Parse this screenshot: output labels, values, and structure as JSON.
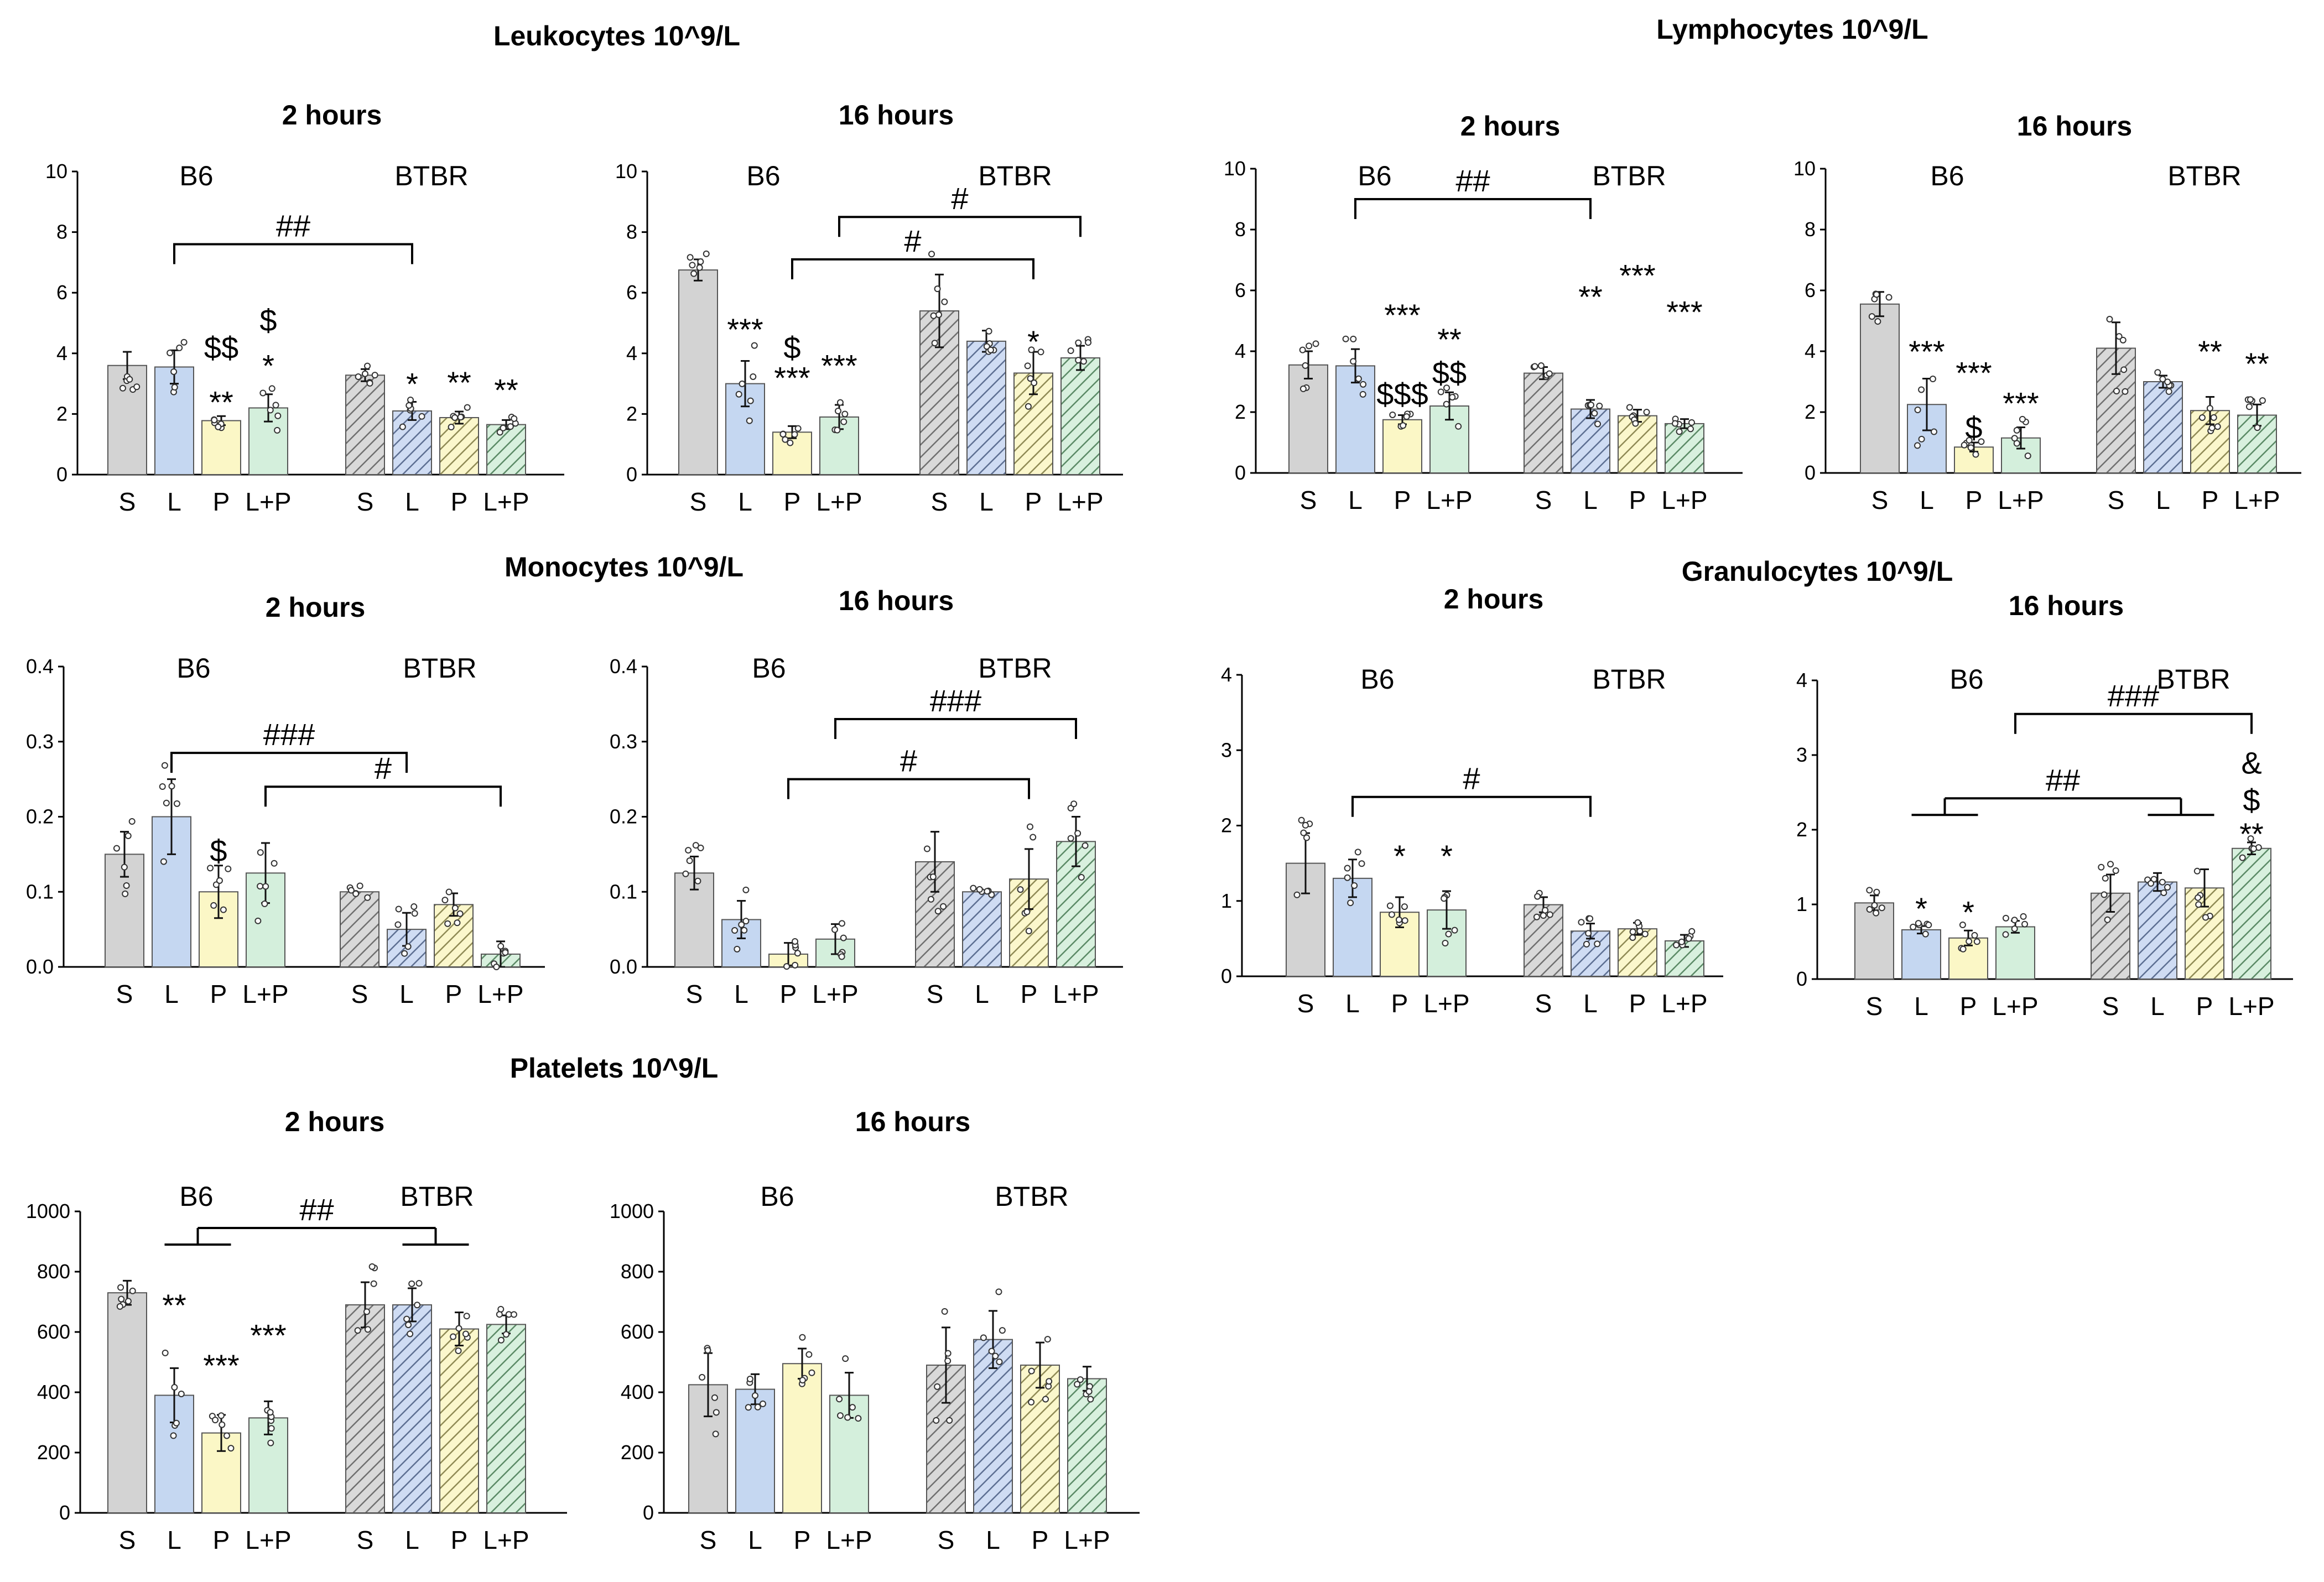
{
  "figure": {
    "series_colors": {
      "S": "#d3d3d3",
      "L": "#c5d7f1",
      "P": "#fbf7c6",
      "L+P": "#d4efdc"
    },
    "hatch_note": "BTBR bars hatched",
    "sections": [
      {
        "title": "Leukocytes 10^9/L"
      },
      {
        "title": "Lymphocytes 10^9/L"
      },
      {
        "title": "Monocytes 10^9/L"
      },
      {
        "title": "Granulocytes 10^9/L"
      },
      {
        "title": "Platelets 10^9/L"
      }
    ]
  },
  "chart_data": [
    {
      "id": "leuk_2h",
      "type": "bar",
      "section": "Leukocytes 10^9/L",
      "title": "2 hours",
      "groups": [
        "B6",
        "BTBR"
      ],
      "categories": [
        "S",
        "L",
        "P",
        "L+P"
      ],
      "ylim": [
        0,
        10
      ],
      "yticks": [
        "0",
        "2",
        "4",
        "6",
        "8",
        "10"
      ],
      "series": [
        {
          "name": "B6",
          "values": [
            3.6,
            3.55,
            1.78,
            2.2
          ],
          "errors": [
            0.45,
            0.55,
            0.15,
            0.45
          ]
        },
        {
          "name": "BTBR",
          "values": [
            3.28,
            2.1,
            1.88,
            1.65
          ],
          "errors": [
            0.2,
            0.3,
            0.2,
            0.15
          ]
        }
      ],
      "annotations": [
        {
          "label": "**",
          "group": 0,
          "index": 2,
          "y": 2.4
        },
        {
          "label": "$$",
          "group": 0,
          "index": 2,
          "y": 4.2
        },
        {
          "label": "*",
          "group": 0,
          "index": 3,
          "y": 3.6
        },
        {
          "label": "$",
          "group": 0,
          "index": 3,
          "y": 5.1
        },
        {
          "label": "*",
          "group": 1,
          "index": 1,
          "y": 3.0
        },
        {
          "label": "**",
          "group": 1,
          "index": 2,
          "y": 3.05
        },
        {
          "label": "**",
          "group": 1,
          "index": 3,
          "y": 2.8
        }
      ],
      "brackets": [
        {
          "label": "##",
          "from": [
            0,
            1
          ],
          "to": [
            1,
            1
          ],
          "y": 7.6,
          "type": "down"
        }
      ]
    },
    {
      "id": "leuk_16h",
      "type": "bar",
      "section": "Leukocytes 10^9/L",
      "title": "16 hours",
      "groups": [
        "B6",
        "BTBR"
      ],
      "categories": [
        "S",
        "L",
        "P",
        "L+P"
      ],
      "ylim": [
        0,
        10
      ],
      "yticks": [
        "0",
        "2",
        "4",
        "6",
        "8",
        "10"
      ],
      "series": [
        {
          "name": "B6",
          "values": [
            6.75,
            3.0,
            1.4,
            1.9
          ],
          "errors": [
            0.35,
            0.75,
            0.2,
            0.4
          ]
        },
        {
          "name": "BTBR",
          "values": [
            5.4,
            4.4,
            3.35,
            3.85
          ],
          "errors": [
            1.2,
            0.35,
            0.7,
            0.4
          ]
        }
      ],
      "annotations": [
        {
          "label": "***",
          "group": 0,
          "index": 1,
          "y": 4.8
        },
        {
          "label": "***",
          "group": 0,
          "index": 2,
          "y": 3.2
        },
        {
          "label": "$",
          "group": 0,
          "index": 2,
          "y": 4.2
        },
        {
          "label": "***",
          "group": 0,
          "index": 3,
          "y": 3.6
        },
        {
          "label": "*",
          "group": 1,
          "index": 2,
          "y": 4.4
        }
      ],
      "brackets": [
        {
          "label": "#",
          "from": [
            0,
            2
          ],
          "to": [
            1,
            2
          ],
          "y": 7.1,
          "type": "down"
        },
        {
          "label": "#",
          "from": [
            0,
            3
          ],
          "to": [
            1,
            3
          ],
          "y": 8.5,
          "type": "down"
        }
      ]
    },
    {
      "id": "lymph_2h",
      "type": "bar",
      "section": "Lymphocytes 10^9/L",
      "title": "2 hours",
      "groups": [
        "B6",
        "BTBR"
      ],
      "categories": [
        "S",
        "L",
        "P",
        "L+P"
      ],
      "ylim": [
        0,
        10
      ],
      "yticks": [
        "0",
        "2",
        "4",
        "6",
        "8",
        "10"
      ],
      "series": [
        {
          "name": "B6",
          "values": [
            3.55,
            3.52,
            1.75,
            2.2
          ],
          "errors": [
            0.45,
            0.55,
            0.15,
            0.45
          ]
        },
        {
          "name": "BTBR",
          "values": [
            3.28,
            2.1,
            1.88,
            1.62
          ],
          "errors": [
            0.2,
            0.3,
            0.2,
            0.15
          ]
        }
      ],
      "annotations": [
        {
          "label": "$$$",
          "group": 0,
          "index": 2,
          "y": 2.6
        },
        {
          "label": "***",
          "group": 0,
          "index": 2,
          "y": 5.2
        },
        {
          "label": "$$",
          "group": 0,
          "index": 3,
          "y": 3.3
        },
        {
          "label": "**",
          "group": 0,
          "index": 3,
          "y": 4.4
        },
        {
          "label": "**",
          "group": 1,
          "index": 1,
          "y": 5.8
        },
        {
          "label": "***",
          "group": 1,
          "index": 2,
          "y": 6.5
        },
        {
          "label": "***",
          "group": 1,
          "index": 3,
          "y": 5.3
        }
      ],
      "brackets": [
        {
          "label": "##",
          "from": [
            0,
            1
          ],
          "to": [
            1,
            1
          ],
          "y": 9.0,
          "type": "down"
        }
      ]
    },
    {
      "id": "lymph_16h",
      "type": "bar",
      "section": "Lymphocytes 10^9/L",
      "title": "16 hours",
      "groups": [
        "B6",
        "BTBR"
      ],
      "categories": [
        "S",
        "L",
        "P",
        "L+P"
      ],
      "ylim": [
        0,
        10
      ],
      "yticks": [
        "0",
        "2",
        "4",
        "6",
        "8",
        "10"
      ],
      "series": [
        {
          "name": "B6",
          "values": [
            5.55,
            2.25,
            0.85,
            1.15
          ],
          "errors": [
            0.4,
            0.85,
            0.15,
            0.35
          ]
        },
        {
          "name": "BTBR",
          "values": [
            4.1,
            3.0,
            2.05,
            1.9
          ],
          "errors": [
            0.85,
            0.2,
            0.45,
            0.35
          ]
        }
      ],
      "annotations": [
        {
          "label": "***",
          "group": 0,
          "index": 1,
          "y": 4.0
        },
        {
          "label": "***",
          "group": 0,
          "index": 2,
          "y": 3.3
        },
        {
          "label": "$",
          "group": 0,
          "index": 2,
          "y": 1.5
        },
        {
          "label": "***",
          "group": 0,
          "index": 3,
          "y": 2.3
        },
        {
          "label": "**",
          "group": 1,
          "index": 2,
          "y": 4.0
        },
        {
          "label": "**",
          "group": 1,
          "index": 3,
          "y": 3.6
        }
      ],
      "brackets": []
    },
    {
      "id": "mono_2h",
      "type": "bar",
      "section": "Monocytes 10^9/L",
      "title": "2 hours",
      "groups": [
        "B6",
        "BTBR"
      ],
      "categories": [
        "S",
        "L",
        "P",
        "L+P"
      ],
      "ylim": [
        0,
        0.4
      ],
      "yticks": [
        "0.0",
        "0.1",
        "0.2",
        "0.3",
        "0.4"
      ],
      "series": [
        {
          "name": "B6",
          "values": [
            0.15,
            0.2,
            0.1,
            0.125
          ],
          "errors": [
            0.03,
            0.05,
            0.035,
            0.04
          ]
        },
        {
          "name": "BTBR",
          "values": [
            0.1,
            0.05,
            0.083,
            0.017
          ],
          "errors": [
            0.0,
            0.022,
            0.015,
            0.017
          ]
        }
      ],
      "annotations": [
        {
          "label": "$",
          "group": 0,
          "index": 2,
          "y": 0.155
        }
      ],
      "brackets": [
        {
          "label": "###",
          "from": [
            0,
            1
          ],
          "to": [
            1,
            1
          ],
          "y": 0.285,
          "type": "down"
        },
        {
          "label": "#",
          "from": [
            0,
            3
          ],
          "to": [
            1,
            3
          ],
          "y": 0.24,
          "type": "down"
        }
      ]
    },
    {
      "id": "mono_16h",
      "type": "bar",
      "section": "Monocytes 10^9/L",
      "title": "16 hours",
      "groups": [
        "B6",
        "BTBR"
      ],
      "categories": [
        "S",
        "L",
        "P",
        "L+P"
      ],
      "ylim": [
        0,
        0.4
      ],
      "yticks": [
        "0.0",
        "0.1",
        "0.2",
        "0.3",
        "0.4"
      ],
      "series": [
        {
          "name": "B6",
          "values": [
            0.125,
            0.063,
            0.017,
            0.037
          ],
          "errors": [
            0.022,
            0.025,
            0.015,
            0.02
          ]
        },
        {
          "name": "BTBR",
          "values": [
            0.14,
            0.1,
            0.117,
            0.167
          ],
          "errors": [
            0.04,
            0.0,
            0.04,
            0.033
          ]
        }
      ],
      "annotations": [],
      "brackets": [
        {
          "label": "###",
          "from": [
            0,
            3
          ],
          "to": [
            1,
            3
          ],
          "y": 0.33,
          "type": "down"
        },
        {
          "label": "#",
          "from": [
            0,
            2
          ],
          "to": [
            1,
            2
          ],
          "y": 0.25,
          "type": "down"
        }
      ]
    },
    {
      "id": "gran_2h",
      "type": "bar",
      "section": "Granulocytes 10^9/L",
      "title": "2 hours",
      "groups": [
        "B6",
        "BTBR"
      ],
      "categories": [
        "S",
        "L",
        "P",
        "L+P"
      ],
      "ylim": [
        0,
        4
      ],
      "yticks": [
        "0",
        "1",
        "2",
        "3",
        "4"
      ],
      "series": [
        {
          "name": "B6",
          "values": [
            1.5,
            1.3,
            0.85,
            0.88
          ],
          "errors": [
            0.4,
            0.25,
            0.2,
            0.25
          ]
        },
        {
          "name": "BTBR",
          "values": [
            0.95,
            0.6,
            0.63,
            0.47
          ],
          "errors": [
            0.1,
            0.1,
            0.08,
            0.08
          ]
        }
      ],
      "annotations": [
        {
          "label": "*",
          "group": 0,
          "index": 2,
          "y": 1.6
        },
        {
          "label": "*",
          "group": 0,
          "index": 3,
          "y": 1.6
        }
      ],
      "brackets": [
        {
          "label": "#",
          "from": [
            0,
            1
          ],
          "to": [
            1,
            1
          ],
          "y": 2.38,
          "type": "down"
        }
      ]
    },
    {
      "id": "gran_16h",
      "type": "bar",
      "section": "Granulocytes 10^9/L",
      "title": "16 hours",
      "groups": [
        "B6",
        "BTBR"
      ],
      "categories": [
        "S",
        "L",
        "P",
        "L+P"
      ],
      "ylim": [
        0,
        4
      ],
      "yticks": [
        "0",
        "1",
        "2",
        "3",
        "4"
      ],
      "series": [
        {
          "name": "B6",
          "values": [
            1.02,
            0.66,
            0.55,
            0.7
          ],
          "errors": [
            0.1,
            0.05,
            0.1,
            0.08
          ]
        },
        {
          "name": "BTBR",
          "values": [
            1.15,
            1.3,
            1.22,
            1.75
          ],
          "errors": [
            0.25,
            0.12,
            0.25,
            0.08
          ]
        }
      ],
      "annotations": [
        {
          "label": "*",
          "group": 0,
          "index": 1,
          "y": 0.95
        },
        {
          "label": "*",
          "group": 0,
          "index": 2,
          "y": 0.9
        },
        {
          "label": "**",
          "group": 1,
          "index": 3,
          "y": 1.95
        },
        {
          "label": "$",
          "group": 1,
          "index": 3,
          "y": 2.4
        },
        {
          "label": "&",
          "group": 1,
          "index": 3,
          "y": 2.9
        }
      ],
      "brackets": [
        {
          "label": "##",
          "from": [
            0,
            1.5
          ],
          "to": [
            1,
            1.5
          ],
          "y": 2.42,
          "type": "t"
        },
        {
          "label": "###",
          "from": [
            0,
            3
          ],
          "to": [
            1,
            3
          ],
          "y": 3.55,
          "type": "down"
        }
      ]
    },
    {
      "id": "plt_2h",
      "type": "bar",
      "section": "Platelets 10^9/L",
      "title": "2 hours",
      "groups": [
        "B6",
        "BTBR"
      ],
      "categories": [
        "S",
        "L",
        "P",
        "L+P"
      ],
      "ylim": [
        0,
        1000
      ],
      "yticks": [
        "0",
        "200",
        "400",
        "600",
        "800",
        "1000"
      ],
      "series": [
        {
          "name": "B6",
          "values": [
            730,
            390,
            265,
            315
          ],
          "errors": [
            40,
            90,
            60,
            55
          ]
        },
        {
          "name": "BTBR",
          "values": [
            690,
            690,
            610,
            625
          ],
          "errors": [
            75,
            55,
            55,
            30
          ]
        }
      ],
      "annotations": [
        {
          "label": "**",
          "group": 0,
          "index": 1,
          "y": 690
        },
        {
          "label": "***",
          "group": 0,
          "index": 2,
          "y": 490
        },
        {
          "label": "***",
          "group": 0,
          "index": 3,
          "y": 590
        }
      ],
      "brackets": [
        {
          "label": "##",
          "from": [
            0,
            1.5
          ],
          "to": [
            1,
            1.5
          ],
          "y": 945,
          "type": "t"
        }
      ]
    },
    {
      "id": "plt_16h",
      "type": "bar",
      "section": "Platelets 10^9/L",
      "title": "16 hours",
      "groups": [
        "B6",
        "BTBR"
      ],
      "categories": [
        "S",
        "L",
        "P",
        "L+P"
      ],
      "ylim": [
        0,
        1000
      ],
      "yticks": [
        "0",
        "200",
        "400",
        "600",
        "800",
        "1000"
      ],
      "series": [
        {
          "name": "B6",
          "values": [
            425,
            410,
            495,
            390
          ],
          "errors": [
            105,
            50,
            50,
            75
          ]
        },
        {
          "name": "BTBR",
          "values": [
            490,
            575,
            490,
            445
          ],
          "errors": [
            125,
            95,
            75,
            40
          ]
        }
      ],
      "annotations": [],
      "brackets": []
    }
  ]
}
